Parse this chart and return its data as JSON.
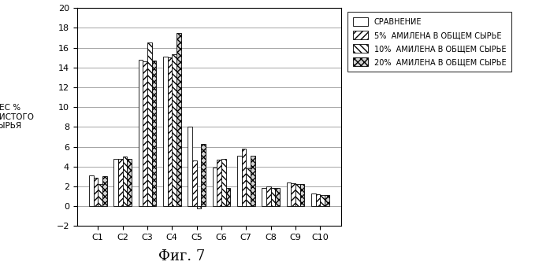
{
  "categories": [
    "C1",
    "C2",
    "C3",
    "C4",
    "C5",
    "C6",
    "C7",
    "C8",
    "C9",
    "C10"
  ],
  "series": {
    "СРАВНЕНИЕ": [
      3.1,
      4.8,
      14.8,
      15.1,
      8.0,
      3.9,
      5.1,
      1.8,
      2.4,
      1.25
    ],
    "5%  АМИЛЕНА В ОБЩЕМ СЫРЬЕ": [
      2.9,
      4.8,
      14.6,
      15.0,
      4.6,
      4.7,
      5.8,
      2.0,
      2.3,
      1.2
    ],
    "10%  АМИЛЕНА В ОБЩЕМ СЫРЬЕ": [
      2.2,
      5.0,
      16.5,
      15.3,
      -0.2,
      4.8,
      3.8,
      1.8,
      2.2,
      1.1
    ],
    "20%  АМИЛЕНА В ОБЩЕМ СЫРЬЕ": [
      3.0,
      4.8,
      14.7,
      17.5,
      6.3,
      1.8,
      5.1,
      1.8,
      2.2,
      1.1
    ]
  },
  "legend_labels": [
    "СРАВНЕНИЕ",
    "5%  АМИЛЕНА В ОБЩЕМ СЫРЬЕ",
    "10%  АМИЛЕНА В ОБЩЕМ СЫРЬЕ",
    "20%  АМИЛЕНА В ОБЩЕМ СЫРЬЕ"
  ],
  "hatch_patterns": [
    "",
    "////",
    "\\\\\\\\",
    "xxxx"
  ],
  "bar_facecolors": [
    "white",
    "white",
    "white",
    "lightgray"
  ],
  "bar_edgecolors": [
    "black",
    "black",
    "black",
    "black"
  ],
  "ylabel": "ВЕС %\nОТ ЧИСТОГО\nСЫРЬЯ",
  "ylim": [
    -2,
    20
  ],
  "yticks": [
    -2,
    0,
    2,
    4,
    6,
    8,
    10,
    12,
    14,
    16,
    18,
    20
  ],
  "figsize": [
    6.98,
    3.42
  ],
  "dpi": 100,
  "caption": "Фиг. 7"
}
